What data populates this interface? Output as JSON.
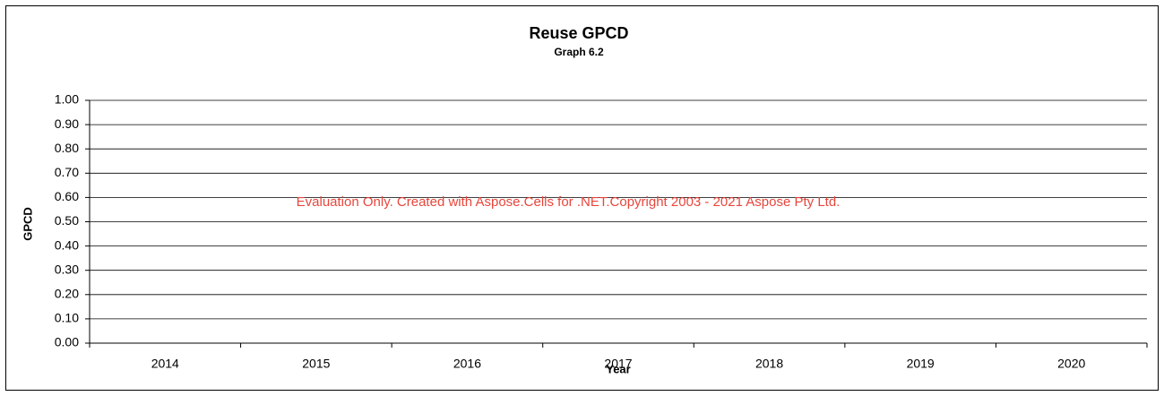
{
  "chart_data": {
    "type": "line",
    "title": "Reuse GPCD",
    "subtitle": "Graph 6.2",
    "x_label": "Year",
    "y_label": "GPCD",
    "annotation": "Evaluation Only. Created with Aspose.Cells for .NET.Copyright 2003 - 2021 Aspose Pty Ltd.",
    "annotation_color": "#e8463c",
    "categories": [
      "2014",
      "2015",
      "2016",
      "2017",
      "2018",
      "2019",
      "2020"
    ],
    "ylim": [
      0,
      1
    ],
    "yticks": [
      {
        "value": 0,
        "label": "0.00"
      },
      {
        "value": 0.1,
        "label": "0.10"
      },
      {
        "value": 0.2,
        "label": "0.20"
      },
      {
        "value": 0.3,
        "label": "0.30"
      },
      {
        "value": 0.4,
        "label": "0.40"
      },
      {
        "value": 0.5,
        "label": "0.50"
      },
      {
        "value": 0.6,
        "label": "0.60"
      },
      {
        "value": 0.7,
        "label": "0.70"
      },
      {
        "value": 0.8,
        "label": "0.80"
      },
      {
        "value": 0.9,
        "label": "0.90"
      },
      {
        "value": 1,
        "label": "1.00"
      }
    ],
    "grid": true
  }
}
